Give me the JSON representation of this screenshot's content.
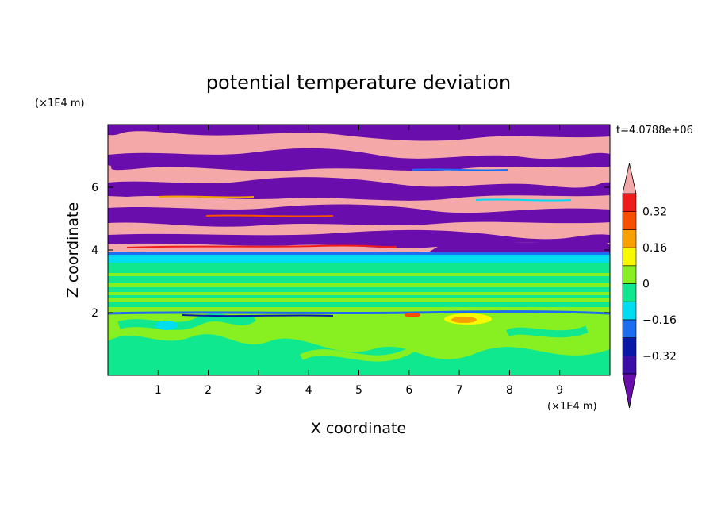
{
  "chart_data": {
    "type": "heatmap",
    "title": "potential temperature deviation",
    "xlabel": "X coordinate",
    "ylabel": "Z coordinate",
    "x_unit": "(×1E4 m)",
    "y_unit": "(×1E4 m)",
    "time_label": "t=4.0788e+06",
    "x_ticks": [
      "1",
      "2",
      "3",
      "4",
      "5",
      "6",
      "7",
      "8",
      "9"
    ],
    "y_ticks": [
      "2",
      "4",
      "6"
    ],
    "x_tick_values": [
      1,
      2,
      3,
      4,
      5,
      6,
      7,
      8,
      9
    ],
    "y_tick_values": [
      2,
      4,
      6
    ],
    "xlim": [
      0,
      10
    ],
    "ylim": [
      0,
      8
    ],
    "grid": false,
    "colorbar": {
      "levels": [
        -0.4,
        -0.32,
        -0.24,
        -0.16,
        -0.08,
        0,
        0.08,
        0.16,
        0.24,
        0.32,
        0.4
      ],
      "tick_labels": [
        "0.32",
        "0.16",
        "0",
        "−0.16",
        "−0.32"
      ],
      "tick_values": [
        0.32,
        0.16,
        0,
        -0.16,
        -0.32
      ],
      "colors": [
        "#6a0dad",
        "#3c0ea8",
        "#0a18a8",
        "#1e6cf0",
        "#00dcf0",
        "#10e890",
        "#88f020",
        "#f8f800",
        "#f8a000",
        "#f85000",
        "#f01c1c",
        "#f4a8a8"
      ],
      "min_arrow_color": "#6a0dad",
      "max_arrow_color": "#f4a8a8"
    },
    "bands": [
      {
        "z_from": 0,
        "z_to": 1.9,
        "value": 0.04,
        "description": "mixed green and lime turbulent region"
      },
      {
        "z_from": 1.9,
        "z_to": 2.0,
        "value": -0.3,
        "description": "thin dark blue layer with hot spots near x 7-8"
      },
      {
        "z_from": 2.0,
        "z_to": 3.6,
        "value": 0.02,
        "description": "stratified green and lime layers"
      },
      {
        "z_from": 3.6,
        "z_to": 3.75,
        "value": -0.12,
        "description": "cyan layer"
      },
      {
        "z_from": 3.75,
        "z_to": 8.0,
        "value": 0.45,
        "description": "alternating pink and purple bands"
      }
    ]
  }
}
